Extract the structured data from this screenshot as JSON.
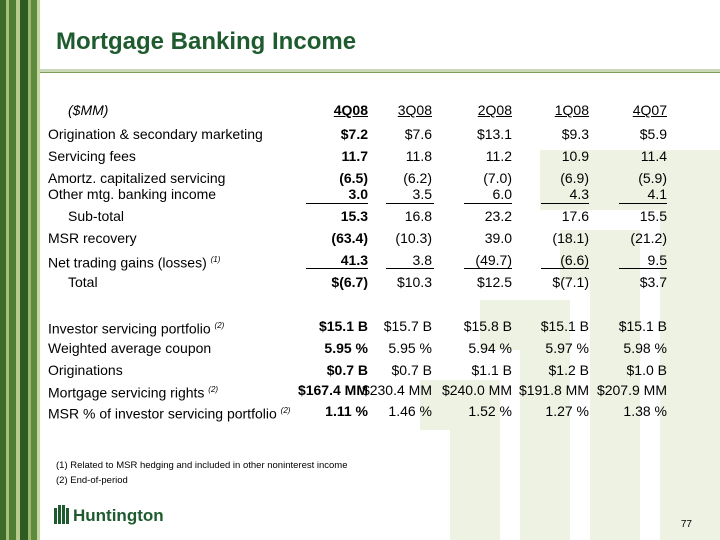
{
  "title": "Mortgage Banking Income",
  "units": "($MM)",
  "periods": [
    "4Q08",
    "3Q08",
    "2Q08",
    "1Q08",
    "4Q07"
  ],
  "rows": [
    {
      "label": "Origination & secondary marketing",
      "values": [
        "$7.2",
        "$7.6",
        "$13.1",
        "$9.3",
        "$5.9"
      ]
    },
    {
      "label": "Servicing fees",
      "values": [
        "11.7",
        "11.8",
        "11.2",
        "10.9",
        "11.4"
      ]
    },
    {
      "label": "Amortz. capitalized servicing",
      "values": [
        "(6.5)",
        "(6.2)",
        "(7.0)",
        "(6.9)",
        "(5.9)"
      ]
    },
    {
      "label": "Other mtg. banking income",
      "values": [
        "3.0",
        "3.5",
        "6.0",
        "4.3",
        "4.1"
      ]
    },
    {
      "label": "Sub-total",
      "values": [
        "15.3",
        "16.8",
        "23.2",
        "17.6",
        "15.5"
      ]
    },
    {
      "label": "MSR recovery",
      "values": [
        "(63.4)",
        "(10.3)",
        "39.0",
        "(18.1)",
        "(21.2)"
      ]
    },
    {
      "label": "Net trading gains (losses)",
      "note": "(1)",
      "values": [
        "41.3",
        "3.8",
        "(49.7)",
        "(6.6)",
        "9.5"
      ]
    },
    {
      "label": "Total",
      "values": [
        "$(6.7)",
        "$10.3",
        "$12.5",
        "$(7.1)",
        "$3.7"
      ]
    },
    {
      "label": "Investor servicing portfolio",
      "note": "(2)",
      "values": [
        "$15.1 B",
        "$15.7 B",
        "$15.8 B",
        "$15.1 B",
        "$15.1 B"
      ]
    },
    {
      "label": "Weighted average coupon",
      "values": [
        "5.95 %",
        "5.95 %",
        "5.94 %",
        "5.97 %",
        "5.98 %"
      ]
    },
    {
      "label": "Originations",
      "values": [
        "$0.7 B",
        "$0.7 B",
        "$1.1 B",
        "$1.2 B",
        "$1.0 B"
      ]
    },
    {
      "label": "Mortgage servicing rights",
      "note": "(2)",
      "values": [
        "$167.4 MM",
        "$230.4 MM",
        "$240.0 MM",
        "$191.8 MM",
        "$207.9 MM"
      ]
    },
    {
      "label": "MSR % of investor  servicing portfolio",
      "note": "(2)",
      "values": [
        "1.11 %",
        "1.46 %",
        "1.52 %",
        "1.27 %",
        "1.38 %"
      ]
    }
  ],
  "footnotes": [
    "(1)   Related to MSR hedging and included in other noninterest income",
    "(2)   End-of-period"
  ],
  "logo_text": "Huntington",
  "page_number": "77",
  "colors": {
    "title": "#1e5b2e",
    "stripe_dark": "#3d6b2a",
    "stripe_light": "#a8c07a",
    "watermark": "#edf2e3"
  }
}
